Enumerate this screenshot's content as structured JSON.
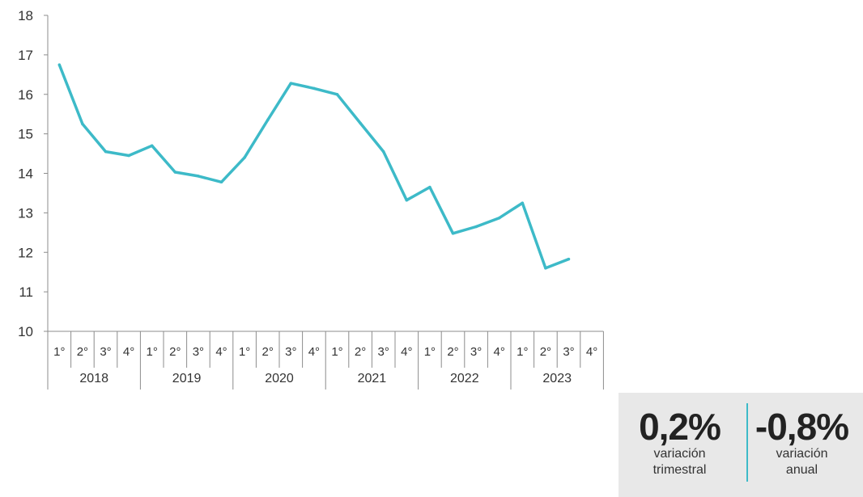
{
  "chart_data": {
    "type": "line",
    "title": "",
    "xlabel": "",
    "ylabel": "",
    "ylim": [
      10,
      18
    ],
    "yticks": [
      10,
      11,
      12,
      13,
      14,
      15,
      16,
      17,
      18
    ],
    "years": [
      "2018",
      "2019",
      "2020",
      "2021",
      "2022",
      "2023"
    ],
    "quarters": [
      "1°",
      "2°",
      "3°",
      "4°"
    ],
    "series": [
      {
        "color": "#3dbac8",
        "values": [
          16.75,
          15.25,
          14.55,
          14.45,
          14.7,
          14.03,
          13.93,
          13.78,
          14.4,
          15.35,
          16.28,
          16.15,
          16.0,
          15.27,
          14.55,
          13.32,
          13.65,
          12.48,
          12.65,
          12.87,
          13.25,
          11.6,
          11.83
        ]
      }
    ],
    "grid": false,
    "legend": "none"
  },
  "stats": {
    "quarterly": {
      "value": "0,2%",
      "label_line1": "variación",
      "label_line2": "trimestral"
    },
    "annual": {
      "value": "-0,8%",
      "label_line1": "variación",
      "label_line2": "anual"
    }
  },
  "colors": {
    "line": "#3dbac8",
    "axis": "#8c8c8c",
    "panel_bg": "#e8e8e8",
    "divider": "#3dbac8"
  }
}
